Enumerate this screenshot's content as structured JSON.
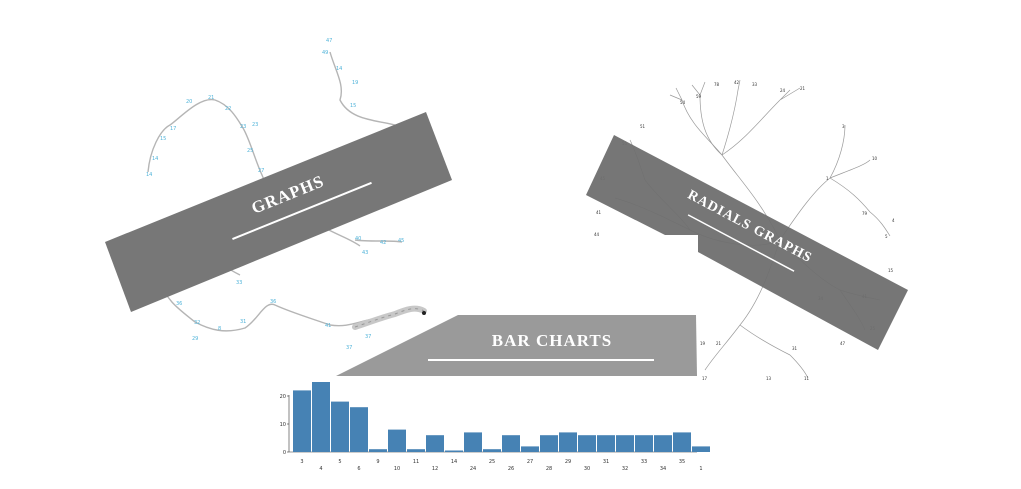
{
  "banners": {
    "graphs": "GRAPHS",
    "radials": "RADIALS GRAPHS",
    "bar_charts": "BAR CHARTS"
  },
  "colors": {
    "banner_dark": "#777777",
    "banner_light": "#9a9a9a",
    "bar": "#4682b4",
    "graph_link": "#b0b0b0",
    "graph_label": "#4fb3d9"
  },
  "chart_data": {
    "type": "bar",
    "title": "",
    "xlabel": "",
    "ylabel": "",
    "categories": [
      "3",
      "4",
      "5",
      "6",
      "9",
      "10",
      "11",
      "12",
      "14",
      "24",
      "25",
      "26",
      "27",
      "28",
      "29",
      "30",
      "31",
      "32",
      "33",
      "34",
      "35",
      "1"
    ],
    "values": [
      22,
      25,
      18,
      16,
      1,
      8,
      1,
      6,
      0,
      7,
      1,
      6,
      2,
      6,
      7,
      6,
      6,
      6,
      6,
      6,
      7,
      2
    ],
    "ylim": [
      0,
      25
    ],
    "y_ticks": [
      "0",
      "10",
      "20"
    ]
  }
}
